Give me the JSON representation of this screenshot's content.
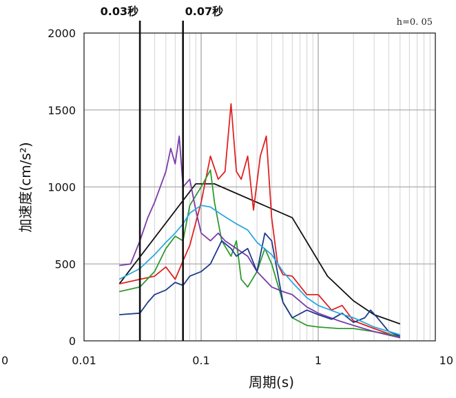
{
  "chart_data": {
    "type": "line",
    "title": "",
    "annotation": "h=0. 05",
    "xlabel": "周期(s)",
    "ylabel": "加速度(cm/s²)",
    "xscale": "log",
    "xlim": [
      0.01,
      10
    ],
    "ylim": [
      0,
      2000
    ],
    "grid": true,
    "x_ticks": [
      0.01,
      0.1,
      1,
      10
    ],
    "x_tick_labels": [
      "0.01",
      "0.1",
      "1",
      "10"
    ],
    "y_ticks": [
      0,
      500,
      1000,
      1500,
      2000
    ],
    "y_tick_labels": [
      "0",
      "500",
      "1000",
      "1500",
      "2000"
    ],
    "edge_label_left": "0",
    "reference_lines": [
      {
        "x": 0.03,
        "label": "0.03秒"
      },
      {
        "x": 0.07,
        "label": "0.07秒"
      }
    ],
    "series": [
      {
        "color": "#111111",
        "points": [
          [
            0.02,
            370
          ],
          [
            0.09,
            1020
          ],
          [
            0.13,
            1020
          ],
          [
            0.6,
            800
          ],
          [
            1.2,
            420
          ],
          [
            2,
            260
          ],
          [
            3,
            170
          ],
          [
            5,
            110
          ]
        ]
      },
      {
        "color": "#e02020",
        "points": [
          [
            0.02,
            370
          ],
          [
            0.03,
            400
          ],
          [
            0.04,
            420
          ],
          [
            0.05,
            480
          ],
          [
            0.06,
            400
          ],
          [
            0.07,
            520
          ],
          [
            0.08,
            620
          ],
          [
            0.1,
            900
          ],
          [
            0.12,
            1200
          ],
          [
            0.14,
            1050
          ],
          [
            0.16,
            1100
          ],
          [
            0.18,
            1540
          ],
          [
            0.2,
            1100
          ],
          [
            0.22,
            1050
          ],
          [
            0.25,
            1200
          ],
          [
            0.28,
            850
          ],
          [
            0.32,
            1200
          ],
          [
            0.36,
            1330
          ],
          [
            0.4,
            800
          ],
          [
            0.45,
            500
          ],
          [
            0.5,
            430
          ],
          [
            0.6,
            420
          ],
          [
            0.8,
            300
          ],
          [
            1,
            300
          ],
          [
            1.3,
            200
          ],
          [
            1.6,
            230
          ],
          [
            2,
            130
          ],
          [
            3,
            80
          ],
          [
            5,
            20
          ]
        ]
      },
      {
        "color": "#2e9a2e",
        "points": [
          [
            0.02,
            320
          ],
          [
            0.03,
            350
          ],
          [
            0.04,
            450
          ],
          [
            0.05,
            600
          ],
          [
            0.06,
            680
          ],
          [
            0.07,
            650
          ],
          [
            0.08,
            880
          ],
          [
            0.1,
            1000
          ],
          [
            0.12,
            1110
          ],
          [
            0.13,
            900
          ],
          [
            0.15,
            650
          ],
          [
            0.18,
            550
          ],
          [
            0.2,
            650
          ],
          [
            0.22,
            400
          ],
          [
            0.25,
            350
          ],
          [
            0.3,
            450
          ],
          [
            0.35,
            600
          ],
          [
            0.4,
            500
          ],
          [
            0.5,
            250
          ],
          [
            0.6,
            150
          ],
          [
            0.8,
            100
          ],
          [
            1,
            90
          ],
          [
            1.5,
            80
          ],
          [
            2,
            80
          ],
          [
            3,
            60
          ],
          [
            5,
            30
          ]
        ]
      },
      {
        "color": "#7a3aa8",
        "points": [
          [
            0.02,
            490
          ],
          [
            0.025,
            500
          ],
          [
            0.03,
            650
          ],
          [
            0.035,
            800
          ],
          [
            0.04,
            900
          ],
          [
            0.05,
            1100
          ],
          [
            0.055,
            1250
          ],
          [
            0.06,
            1150
          ],
          [
            0.065,
            1330
          ],
          [
            0.07,
            1000
          ],
          [
            0.08,
            1050
          ],
          [
            0.09,
            850
          ],
          [
            0.1,
            700
          ],
          [
            0.12,
            650
          ],
          [
            0.14,
            700
          ],
          [
            0.16,
            650
          ],
          [
            0.2,
            600
          ],
          [
            0.25,
            550
          ],
          [
            0.3,
            450
          ],
          [
            0.4,
            350
          ],
          [
            0.5,
            320
          ],
          [
            0.6,
            300
          ],
          [
            0.8,
            220
          ],
          [
            1,
            180
          ],
          [
            1.5,
            130
          ],
          [
            2,
            100
          ],
          [
            3,
            60
          ],
          [
            5,
            20
          ]
        ]
      },
      {
        "color": "#1b3a8c",
        "points": [
          [
            0.02,
            170
          ],
          [
            0.03,
            180
          ],
          [
            0.035,
            250
          ],
          [
            0.04,
            300
          ],
          [
            0.05,
            330
          ],
          [
            0.06,
            380
          ],
          [
            0.07,
            360
          ],
          [
            0.08,
            420
          ],
          [
            0.1,
            450
          ],
          [
            0.12,
            500
          ],
          [
            0.15,
            650
          ],
          [
            0.18,
            600
          ],
          [
            0.2,
            550
          ],
          [
            0.25,
            600
          ],
          [
            0.3,
            450
          ],
          [
            0.35,
            700
          ],
          [
            0.4,
            650
          ],
          [
            0.5,
            250
          ],
          [
            0.6,
            150
          ],
          [
            0.8,
            200
          ],
          [
            1,
            170
          ],
          [
            1.3,
            140
          ],
          [
            1.6,
            180
          ],
          [
            2,
            120
          ],
          [
            2.5,
            150
          ],
          [
            2.8,
            200
          ],
          [
            3.2,
            150
          ],
          [
            4,
            60
          ],
          [
            5,
            30
          ]
        ]
      },
      {
        "color": "#2ba8e0",
        "points": [
          [
            0.02,
            400
          ],
          [
            0.03,
            470
          ],
          [
            0.04,
            560
          ],
          [
            0.05,
            640
          ],
          [
            0.06,
            700
          ],
          [
            0.07,
            760
          ],
          [
            0.08,
            830
          ],
          [
            0.1,
            880
          ],
          [
            0.12,
            870
          ],
          [
            0.15,
            820
          ],
          [
            0.2,
            760
          ],
          [
            0.25,
            720
          ],
          [
            0.3,
            640
          ],
          [
            0.4,
            560
          ],
          [
            0.5,
            450
          ],
          [
            0.6,
            380
          ],
          [
            0.8,
            280
          ],
          [
            1,
            230
          ],
          [
            1.5,
            180
          ],
          [
            2,
            150
          ],
          [
            3,
            90
          ],
          [
            5,
            40
          ]
        ]
      }
    ]
  }
}
